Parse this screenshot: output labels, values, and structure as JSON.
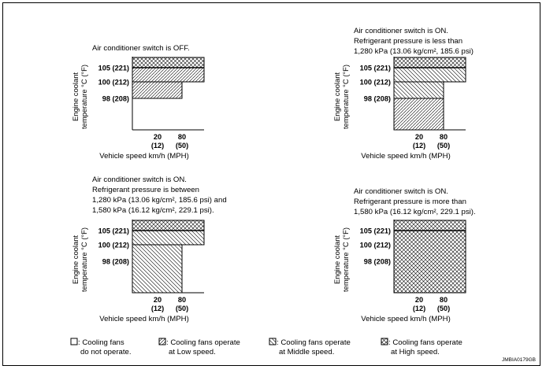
{
  "panels": [
    {
      "id": "ac-off",
      "caption": [
        "Air conditioner switch is OFF."
      ],
      "zones": [
        {
          "mode": "high",
          "temp_from": 105,
          "temp_to": 108,
          "speed_to": 108
        },
        {
          "mode": "low",
          "temp_from": 100,
          "temp_to": 105,
          "speed_to": 108
        },
        {
          "mode": "low",
          "temp_from": 98,
          "temp_to": 100,
          "speed_to": 80
        }
      ]
    },
    {
      "id": "ac-on-low-pressure",
      "caption": [
        "Air conditioner switch is ON.",
        "Refrigerant pressure is less than",
        "1,280 kPa (13.06 kg/cm², 185.6 psi)"
      ],
      "zones": [
        {
          "mode": "high",
          "temp_from": 105,
          "temp_to": 108,
          "speed_to": 108
        },
        {
          "mode": "middle",
          "temp_from": 100,
          "temp_to": 105,
          "speed_to": 108
        },
        {
          "mode": "middle",
          "temp_from": 98,
          "temp_to": 100,
          "speed_to": 80
        },
        {
          "mode": "low",
          "temp_from": 94,
          "temp_to": 98,
          "speed_to": 80
        }
      ]
    },
    {
      "id": "ac-on-mid-pressure",
      "caption": [
        "Air conditioner switch is ON.",
        "Refrigerant pressure is between",
        "1,280 kPa (13.06 kg/cm², 185.6 psi) and",
        "1,580 kPa (16.12 kg/cm², 229.1 psi)."
      ],
      "zones": [
        {
          "mode": "high",
          "temp_from": 105,
          "temp_to": 108,
          "speed_to": 108
        },
        {
          "mode": "middle",
          "temp_from": 100,
          "temp_to": 105,
          "speed_to": 108
        },
        {
          "mode": "middle",
          "temp_from": 94,
          "temp_to": 100,
          "speed_to": 80
        }
      ]
    },
    {
      "id": "ac-on-high-pressure",
      "caption": [
        "Air conditioner switch is ON.",
        "Refrigerant pressure is more than",
        "1,580 kPa (16.12 kg/cm², 229.1 psi)."
      ],
      "zones": [
        {
          "mode": "high",
          "temp_from": 94,
          "temp_to": 108,
          "speed_to": 108
        }
      ]
    }
  ],
  "axes": {
    "y_title": [
      "Engine coolant",
      "temperature °C (°F)"
    ],
    "y_ticks": [
      {
        "value": 105,
        "label": "105 (221)"
      },
      {
        "value": 100,
        "label": "100 (212)"
      },
      {
        "value": 98,
        "label": "98 (208)"
      }
    ],
    "x_ticks": [
      {
        "value": 20,
        "kmh": "20",
        "mph": "(12)"
      },
      {
        "value": 80,
        "kmh": "80",
        "mph": "(50)"
      }
    ],
    "x_title": "Vehicle speed km/h (MPH)"
  },
  "legend": [
    {
      "mode": "off",
      "line1": ": Cooling fans",
      "line2": "do not operate."
    },
    {
      "mode": "low",
      "line1": ": Cooling fans operate",
      "line2": "at Low speed."
    },
    {
      "mode": "middle",
      "line1": ": Cooling fans operate",
      "line2": "at Middle speed."
    },
    {
      "mode": "high",
      "line1": ": Cooling fans operate",
      "line2": "at High speed."
    }
  ],
  "figure_code": "JMBIA0179GB"
}
